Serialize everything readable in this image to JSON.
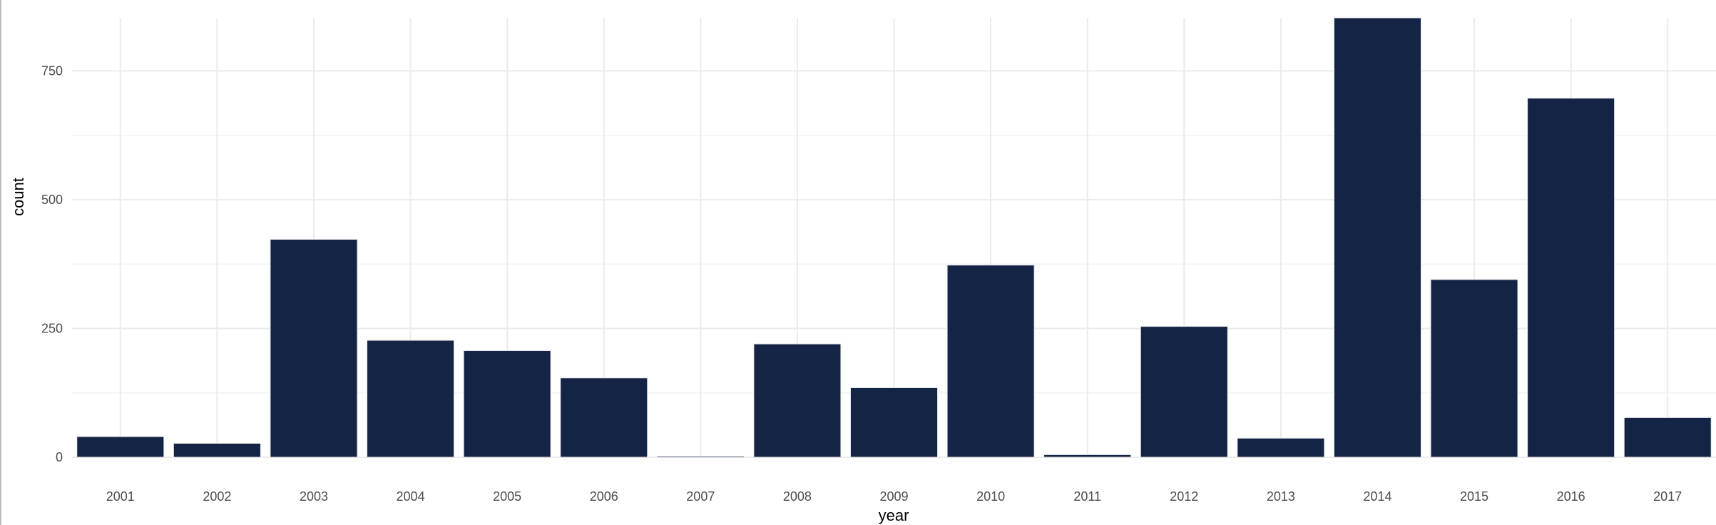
{
  "chart_data": {
    "type": "bar",
    "xlabel": "year",
    "ylabel": "count",
    "categories": [
      "2001",
      "2002",
      "2003",
      "2004",
      "2005",
      "2006",
      "2007",
      "2008",
      "2009",
      "2010",
      "2011",
      "2012",
      "2013",
      "2014",
      "2015",
      "2016",
      "2017"
    ],
    "values": [
      40,
      27,
      423,
      227,
      207,
      154,
      2,
      220,
      135,
      373,
      5,
      254,
      37,
      853,
      345,
      697,
      77
    ],
    "ylim": [
      0,
      853
    ],
    "yticks": [
      0,
      250,
      500,
      750
    ],
    "ytick_labels": [
      "0",
      "250",
      "500",
      "750"
    ],
    "grid": true,
    "legend": "none",
    "colors": {
      "bar_fill": "#132445",
      "bar_stroke": "#e6e6e6",
      "grid_major": "#ebebeb",
      "grid_minor": "#f3f3f3"
    }
  }
}
